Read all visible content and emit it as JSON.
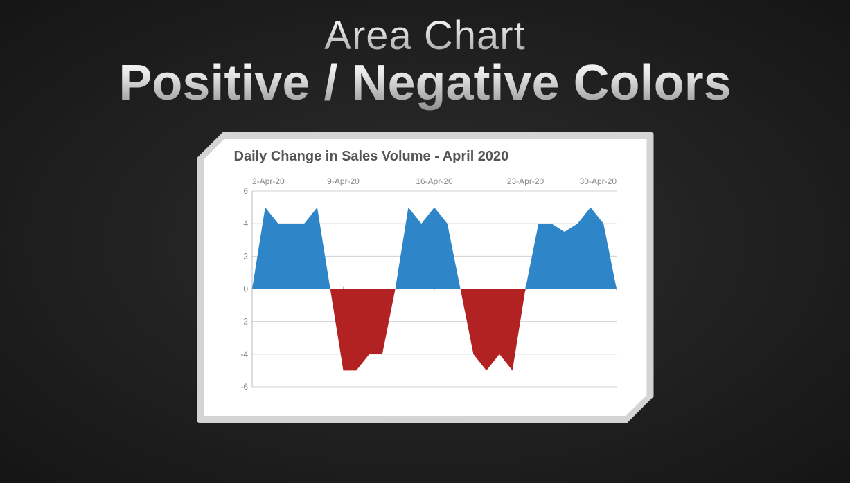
{
  "heading": {
    "line1": "Area Chart",
    "line2": "Positive / Negative Colors"
  },
  "chart": {
    "type": "area",
    "title": "Daily Change in Sales Volume - April 2020",
    "title_fontsize": 20,
    "title_color": "#555555",
    "background_color": "#ffffff",
    "frame_color": "#d4d4d4",
    "grid_color": "#d0d0d0",
    "axis_color": "#b8b8b8",
    "tick_label_color": "#888888",
    "tick_label_fontsize": 12,
    "positive_fill": "#2e86c9",
    "negative_fill": "#b22222",
    "x": {
      "min_index": 0,
      "max_index": 28,
      "tick_indices": [
        0,
        7,
        14,
        21,
        28
      ],
      "tick_labels": [
        "2-Apr-20",
        "9-Apr-20",
        "16-Apr-20",
        "23-Apr-20",
        "30-Apr-20"
      ]
    },
    "y": {
      "min": -6,
      "max": 6,
      "tick_step": 2,
      "tick_labels": [
        "6",
        "4",
        "2",
        "0",
        "-2",
        "-4",
        "-6"
      ]
    },
    "values": [
      0,
      5,
      4,
      4,
      4,
      5,
      0,
      -5,
      -5,
      -4,
      -4,
      0,
      5,
      4,
      5,
      4,
      0,
      -4,
      -5,
      -4,
      -5,
      0,
      4,
      4,
      3.5,
      4,
      5,
      4,
      0
    ]
  },
  "page": {
    "bg_gradient_center": "#2e2e2e",
    "bg_gradient_edge": "#151515"
  }
}
